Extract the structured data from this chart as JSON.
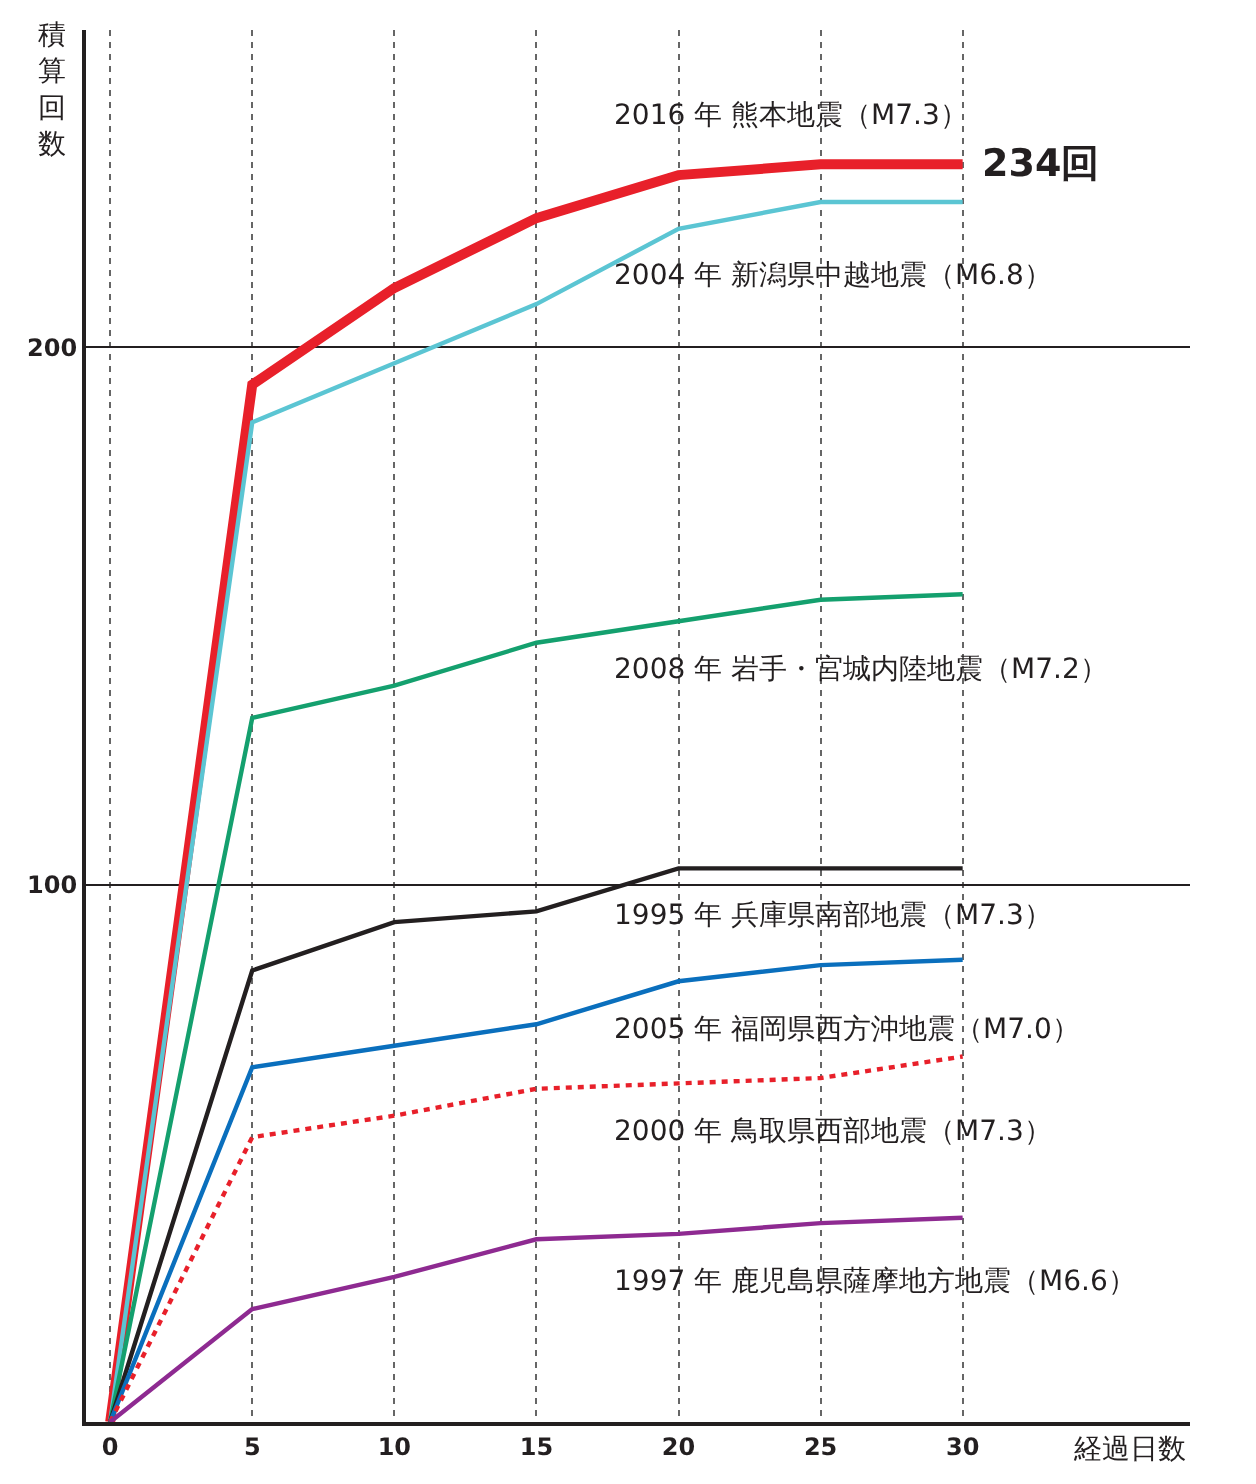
{
  "chart_data": {
    "type": "line",
    "xlabel": "経過日数",
    "ylabel": "積算回数",
    "x": [
      0,
      5,
      10,
      15,
      20,
      25,
      30
    ],
    "series": [
      {
        "name": "2016 年 熊本地震（M7.3）",
        "color": "#e8202a",
        "values": [
          0,
          193,
          211,
          224,
          232,
          234,
          234
        ],
        "value_labels": [
          null,
          null,
          null,
          null,
          null,
          null,
          "234回"
        ]
      },
      {
        "name": "2004 年 新潟県中越地震（M6.8）",
        "color": "#5bc5d3",
        "values": [
          0,
          186,
          197,
          208,
          222,
          227,
          227
        ]
      },
      {
        "name": "2008 年 岩手・宮城内陸地震（M7.2）",
        "color": "#14a06e",
        "values": [
          0,
          131,
          137,
          145,
          149,
          153,
          154
        ]
      },
      {
        "name": "1995 年 兵庫県南部地震（M7.3）",
        "color": "#231f20",
        "values": [
          0,
          84,
          93,
          95,
          103,
          103,
          103
        ]
      },
      {
        "name": "2005 年 福岡県西方沖地震（M7.0）",
        "color": "#0a6fbd",
        "values": [
          0,
          66,
          70,
          74,
          82,
          85,
          86
        ]
      },
      {
        "name": "2000 年 鳥取県西部地震（M7.3）",
        "color": "#e8202a",
        "line_style": "dotted",
        "values": [
          0,
          53,
          57,
          62,
          63,
          64,
          68
        ]
      },
      {
        "name": "1997 年 鹿児島県薩摩地方地震（M6.6）",
        "color": "#8e2a91",
        "values": [
          0,
          21,
          27,
          34,
          35,
          37,
          38
        ]
      }
    ],
    "xlim": [
      -0.85,
      38
    ],
    "xticks": [
      0,
      5,
      10,
      15,
      20,
      25,
      30
    ],
    "ylim": [
      0,
      259
    ],
    "yticks": [
      100,
      200
    ],
    "grid": true,
    "legend": false,
    "marker": "none",
    "line_style": "solid"
  }
}
